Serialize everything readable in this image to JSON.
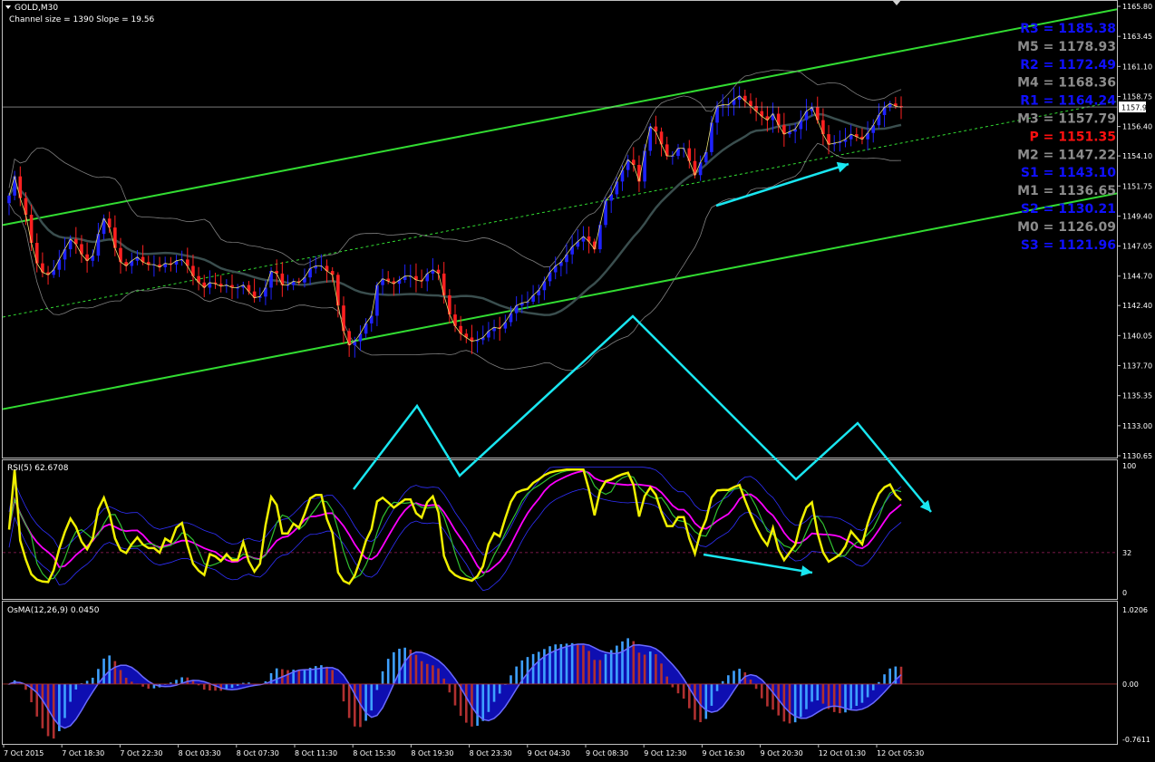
{
  "header": {
    "symbol": "GOLD,M30",
    "channel_info": "Channel size = 1390 Slope = 19.56"
  },
  "colors": {
    "background": "#000000",
    "frame": "#c0c0c0",
    "axis_text": "#ffffff",
    "bull": "#1e22ff",
    "bear": "#ff2020",
    "channel": "#32dc32",
    "bands": "#808080",
    "arrows": "#19e6f0",
    "ma": "#2e3e3e",
    "rsi": "#f0f000",
    "rsi_ma": "#ff00ff",
    "pivot_blue": "#1010ff",
    "pivot_gray": "#8c8c8c",
    "pivot_red": "#ff1010",
    "osma_pos": "#3ea0ff",
    "osma_neg": "#b03030",
    "osma_fill": "#1010d0",
    "osma_line": "#6a6aff"
  },
  "price_panel": {
    "current_price": "1157.93",
    "y_ticks": [
      "1165.80",
      "1163.45",
      "1161.10",
      "1158.75",
      "1156.40",
      "1154.10",
      "1151.75",
      "1149.40",
      "1147.05",
      "1144.70",
      "1142.40",
      "1140.05",
      "1137.70",
      "1135.35",
      "1133.00",
      "1130.65"
    ]
  },
  "pivots": [
    {
      "label": "R3 = 1185.38",
      "tone": "blue"
    },
    {
      "label": "M5 = 1178.93",
      "tone": "gray"
    },
    {
      "label": "R2 = 1172.49",
      "tone": "blue"
    },
    {
      "label": "M4 = 1168.36",
      "tone": "gray"
    },
    {
      "label": "R1 = 1164.24",
      "tone": "blue"
    },
    {
      "label": "M3 = 1157.79",
      "tone": "gray"
    },
    {
      "label": "P  = 1151.35",
      "tone": "red"
    },
    {
      "label": "M2 = 1147.22",
      "tone": "gray"
    },
    {
      "label": "S1 = 1143.10",
      "tone": "blue"
    },
    {
      "label": "M1 = 1136.65",
      "tone": "gray"
    },
    {
      "label": "S2 = 1130.21",
      "tone": "blue"
    },
    {
      "label": "M0 = 1126.09",
      "tone": "gray"
    },
    {
      "label": "S3 = 1121.96",
      "tone": "blue"
    }
  ],
  "rsi_panel": {
    "title": "RSI(5) 62.6708",
    "y_ticks": [
      "100",
      "32",
      "0"
    ]
  },
  "osma_panel": {
    "title": "OsMA(12,26,9) 0.0450",
    "y_ticks": [
      "1.0206",
      "0.00",
      "-0.7611"
    ]
  },
  "x_ticks": [
    "7 Oct 2015",
    "7 Oct 18:30",
    "7 Oct 22:30",
    "8 Oct 03:30",
    "8 Oct 07:30",
    "8 Oct 11:30",
    "8 Oct 15:30",
    "8 Oct 19:30",
    "8 Oct 23:30",
    "9 Oct 04:30",
    "9 Oct 08:30",
    "9 Oct 12:30",
    "9 Oct 16:30",
    "9 Oct 20:30",
    "12 Oct 01:30",
    "12 Oct 05:30"
  ],
  "chart_data": [
    {
      "type": "candlestick",
      "title": "GOLD,M30",
      "subtitle": "Channel size = 1390 Slope = 19.56",
      "ylim": [
        1129.5,
        1166.5
      ],
      "close": [
        1151.0,
        1152.5,
        1150.8,
        1149.5,
        1147.3,
        1145.7,
        1145.0,
        1144.8,
        1145.2,
        1146.0,
        1146.8,
        1147.6,
        1147.2,
        1146.4,
        1145.9,
        1146.3,
        1148.0,
        1149.2,
        1148.5,
        1146.9,
        1145.8,
        1145.5,
        1145.9,
        1146.2,
        1145.8,
        1145.6,
        1145.6,
        1145.4,
        1145.7,
        1145.6,
        1145.9,
        1146.0,
        1145.5,
        1144.7,
        1144.2,
        1143.8,
        1144.2,
        1144.1,
        1143.9,
        1144.0,
        1143.8,
        1143.8,
        1144.0,
        1143.5,
        1143.0,
        1143.1,
        1143.8,
        1145.1,
        1144.9,
        1144.0,
        1144.0,
        1144.3,
        1144.2,
        1144.6,
        1145.3,
        1145.5,
        1145.5,
        1145.1,
        1144.8,
        1142.4,
        1140.4,
        1139.3,
        1139.6,
        1140.2,
        1141.0,
        1141.6,
        1144.0,
        1144.5,
        1144.3,
        1144.1,
        1144.4,
        1144.7,
        1144.7,
        1144.4,
        1144.3,
        1144.9,
        1145.2,
        1144.9,
        1143.2,
        1141.7,
        1140.8,
        1140.2,
        1139.9,
        1139.6,
        1139.7,
        1139.9,
        1140.4,
        1140.7,
        1140.6,
        1141.1,
        1141.8,
        1142.4,
        1142.6,
        1142.7,
        1143.2,
        1143.6,
        1144.3,
        1145.0,
        1145.5,
        1145.8,
        1146.4,
        1147.0,
        1147.4,
        1147.8,
        1147.4,
        1146.8,
        1148.7,
        1150.6,
        1151.1,
        1152.1,
        1153.0,
        1153.8,
        1153.4,
        1152.1,
        1154.5,
        1156.4,
        1156.0,
        1155.0,
        1154.1,
        1154.1,
        1154.7,
        1154.7,
        1153.7,
        1152.6,
        1153.6,
        1154.4,
        1156.7,
        1158.0,
        1158.1,
        1158.1,
        1158.5,
        1158.8,
        1158.4,
        1158.0,
        1157.6,
        1157.2,
        1156.9,
        1157.4,
        1156.5,
        1155.8,
        1156.0,
        1156.2,
        1156.9,
        1157.6,
        1157.9,
        1156.9,
        1155.8,
        1155.0,
        1155.1,
        1155.2,
        1155.4,
        1155.8,
        1155.6,
        1155.4,
        1155.9,
        1156.5,
        1157.3,
        1157.9,
        1158.2,
        1158.0,
        1157.9
      ],
      "sample_interval": "30 min",
      "channel": {
        "note": "linear regression channel"
      }
    },
    {
      "type": "line",
      "title": "RSI(5) 62.6708",
      "ylim": [
        0,
        100
      ],
      "level": 32,
      "current": 62.6708
    },
    {
      "type": "bar",
      "title": "OsMA(12,26,9) 0.0450",
      "ylim": [
        -0.7611,
        1.0206
      ],
      "current": 0.045
    }
  ]
}
